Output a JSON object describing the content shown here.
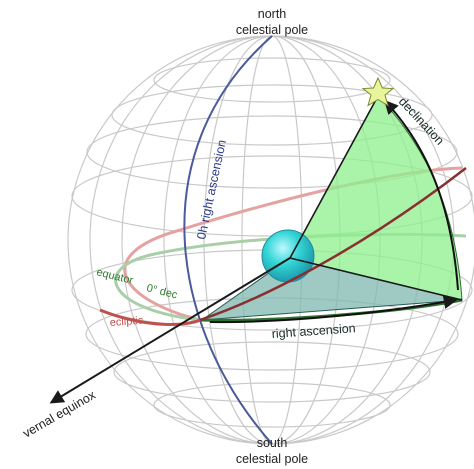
{
  "labels": {
    "north_pole_line1": "north",
    "north_pole_line2": "celestial pole",
    "south_pole_line1": "south",
    "south_pole_line2": "celestial pole",
    "zero_h_ra": "0h right ascension",
    "declination": "declination",
    "equator": "equator",
    "zero_dec": "0° dec",
    "ecliptic": "ecliptic",
    "right_ascension": "right ascension",
    "vernal_equinox": "vernal equinox"
  },
  "colors": {
    "grid": "#c9c9c9",
    "zero_h_meridian": "#4a5a9a",
    "equator": "#4f9a4f",
    "ecliptic": "#c0504d",
    "declination_fill": "#8ef08e",
    "ra_fill": "#7fb8b0",
    "earth": "#33d6d6",
    "star": "#e9f59a"
  },
  "icons": {
    "star": "star-icon",
    "earth": "earth-sphere"
  }
}
